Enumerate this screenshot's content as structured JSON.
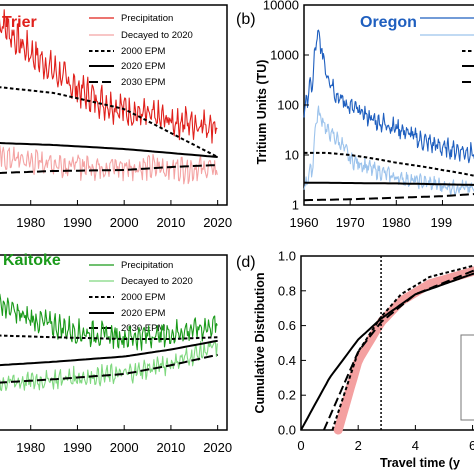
{
  "panels": {
    "a": {
      "title": "Trier",
      "title_color": "#e0201b",
      "legend": [
        "Precipitation",
        "Decayed to 2020",
        "2000 EPM",
        "2020 EPM",
        "2030 EPM"
      ],
      "xticks": [
        "1980",
        "1990",
        "2000",
        "2010",
        "2020"
      ]
    },
    "b": {
      "label": "(b)",
      "title": "Oregon",
      "title_color": "#1f5fbf",
      "ylabel": "Tritium Units (TU)",
      "yticks": [
        "10000",
        "1000",
        "100",
        "10",
        "1"
      ],
      "xticks": [
        "1960",
        "1970",
        "1980",
        "199"
      ]
    },
    "c": {
      "title": "Kaitoke",
      "title_color": "#1a9a1a",
      "legend": [
        "Precipitation",
        "Decayed to 2020",
        "2000 EPM",
        "2020 EPM",
        "2030 EPM"
      ],
      "xticks": [
        "1980",
        "1990",
        "2000",
        "2010",
        "2020"
      ]
    },
    "d": {
      "label": "(d)",
      "ylabel": "Cumulative Distribution",
      "yticks": [
        "1.0",
        "0.8",
        "0.6",
        "0.4",
        "0.2",
        "0.0"
      ],
      "xticks": [
        "0",
        "2",
        "4",
        "6"
      ],
      "xlabel": "Travel time (y"
    }
  },
  "colors": {
    "trier_precip": "#e0201b",
    "trier_decayed": "#f4a3a3",
    "oregon_precip": "#1f5fbf",
    "oregon_decayed": "#9cc3ec",
    "kaitoke_precip": "#1a9a1a",
    "kaitoke_decayed": "#7fd87f",
    "cdf_band": "#f4a0a0",
    "epm": "#000000"
  },
  "chart_data": [
    {
      "panel": "a",
      "type": "line",
      "title": "Trier",
      "x_range": [
        1973,
        2022
      ],
      "series": [
        {
          "name": "Precipitation",
          "x": [
            1973,
            1978,
            1985,
            1990,
            1995,
            2000,
            2005,
            2010,
            2015,
            2020
          ],
          "y": [
            0.93,
            0.8,
            0.67,
            0.58,
            0.52,
            0.48,
            0.44,
            0.42,
            0.41,
            0.4
          ],
          "noisy": true
        },
        {
          "name": "Decayed to 2020",
          "x": [
            1973,
            1980,
            1990,
            2000,
            2010,
            2020
          ],
          "y": [
            0.24,
            0.22,
            0.2,
            0.19,
            0.185,
            0.18
          ],
          "noisy": true
        },
        {
          "name": "2000 EPM",
          "x": [
            1973,
            1985,
            2000,
            2010,
            2020
          ],
          "y": [
            0.59,
            0.56,
            0.48,
            0.36,
            0.24
          ]
        },
        {
          "name": "2020 EPM",
          "x": [
            1973,
            1985,
            2000,
            2010,
            2020
          ],
          "y": [
            0.31,
            0.3,
            0.28,
            0.26,
            0.24
          ]
        },
        {
          "name": "2030 EPM",
          "x": [
            1973,
            1985,
            2000,
            2010,
            2020
          ],
          "y": [
            0.16,
            0.17,
            0.175,
            0.19,
            0.2
          ]
        }
      ]
    },
    {
      "panel": "b",
      "type": "line",
      "title": "Oregon",
      "y_scale": "log",
      "x_range": [
        1960,
        1999
      ],
      "ylim": [
        1,
        10000
      ],
      "series": [
        {
          "name": "Precipitation",
          "x": [
            1960,
            1962,
            1963,
            1964,
            1965,
            1967,
            1970,
            1975,
            1980,
            1985,
            1990,
            1999
          ],
          "y": [
            60,
            300,
            2500,
            1000,
            400,
            150,
            90,
            50,
            35,
            20,
            14,
            10
          ],
          "noisy": true
        },
        {
          "name": "Decayed to 2020",
          "x": [
            1960,
            1962,
            1963,
            1965,
            1970,
            1975,
            1980,
            1990,
            1999
          ],
          "y": [
            2,
            6,
            70,
            30,
            8,
            5,
            3.5,
            2.4,
            2
          ],
          "noisy": true
        },
        {
          "name": "2000 EPM",
          "x": [
            1960,
            1965,
            1970,
            1975,
            1980,
            1990,
            1999
          ],
          "y": [
            11,
            11,
            10,
            8.5,
            7,
            5,
            3.5
          ]
        },
        {
          "name": "2020 EPM",
          "x": [
            1960,
            1980,
            1999
          ],
          "y": [
            2.8,
            2.7,
            2.5
          ]
        },
        {
          "name": "2030 EPM",
          "x": [
            1960,
            1970,
            1980,
            1990,
            1999
          ],
          "y": [
            1.25,
            1.3,
            1.4,
            1.5,
            1.7
          ]
        }
      ]
    },
    {
      "panel": "c",
      "type": "line",
      "title": "Kaitoke",
      "x_range": [
        1973,
        2022
      ],
      "series": [
        {
          "name": "Precipitation",
          "x": [
            1973,
            1978,
            1985,
            1990,
            2000,
            2010,
            2020
          ],
          "y": [
            0.73,
            0.65,
            0.6,
            0.56,
            0.53,
            0.55,
            0.6
          ],
          "noisy": true
        },
        {
          "name": "Decayed to 2020",
          "x": [
            1973,
            1980,
            1990,
            2000,
            2010,
            2020
          ],
          "y": [
            0.27,
            0.28,
            0.3,
            0.32,
            0.38,
            0.48
          ],
          "noisy": true
        },
        {
          "name": "2000 EPM",
          "x": [
            1973,
            1985,
            2000,
            2010,
            2020
          ],
          "y": [
            0.54,
            0.53,
            0.52,
            0.52,
            0.53
          ]
        },
        {
          "name": "2020 EPM",
          "x": [
            1973,
            1985,
            2000,
            2010,
            2020
          ],
          "y": [
            0.37,
            0.39,
            0.42,
            0.46,
            0.51
          ]
        },
        {
          "name": "2030 EPM",
          "x": [
            1973,
            1985,
            2000,
            2010,
            2020
          ],
          "y": [
            0.27,
            0.29,
            0.32,
            0.37,
            0.43
          ]
        }
      ]
    },
    {
      "panel": "d",
      "type": "line",
      "title": "",
      "xlabel": "Travel time (y",
      "ylabel": "Cumulative Distribution",
      "x_range": [
        0,
        6.4
      ],
      "ylim": [
        0,
        1
      ],
      "vline_x": 2.8,
      "series": [
        {
          "name": "2000 EPM",
          "x": [
            1.1,
            1.5,
            2.0,
            2.8,
            3.5,
            4.5,
            6.4
          ],
          "y": [
            0,
            0.2,
            0.45,
            0.65,
            0.78,
            0.88,
            0.96
          ]
        },
        {
          "name": "2020 EPM",
          "x": [
            0,
            0.5,
            1.0,
            2.0,
            2.8,
            4.0,
            6.4
          ],
          "y": [
            0,
            0.15,
            0.3,
            0.52,
            0.64,
            0.78,
            0.92
          ]
        },
        {
          "name": "2030 EPM",
          "x": [
            0.8,
            1.2,
            2.0,
            2.8,
            4.0,
            6.4
          ],
          "y": [
            0,
            0.15,
            0.45,
            0.62,
            0.78,
            0.94
          ]
        },
        {
          "name": "band",
          "x": [
            1.3,
            2.0,
            2.8,
            3.5,
            4.5,
            6.4
          ],
          "y": [
            0,
            0.4,
            0.62,
            0.74,
            0.84,
            0.93
          ]
        }
      ]
    }
  ]
}
